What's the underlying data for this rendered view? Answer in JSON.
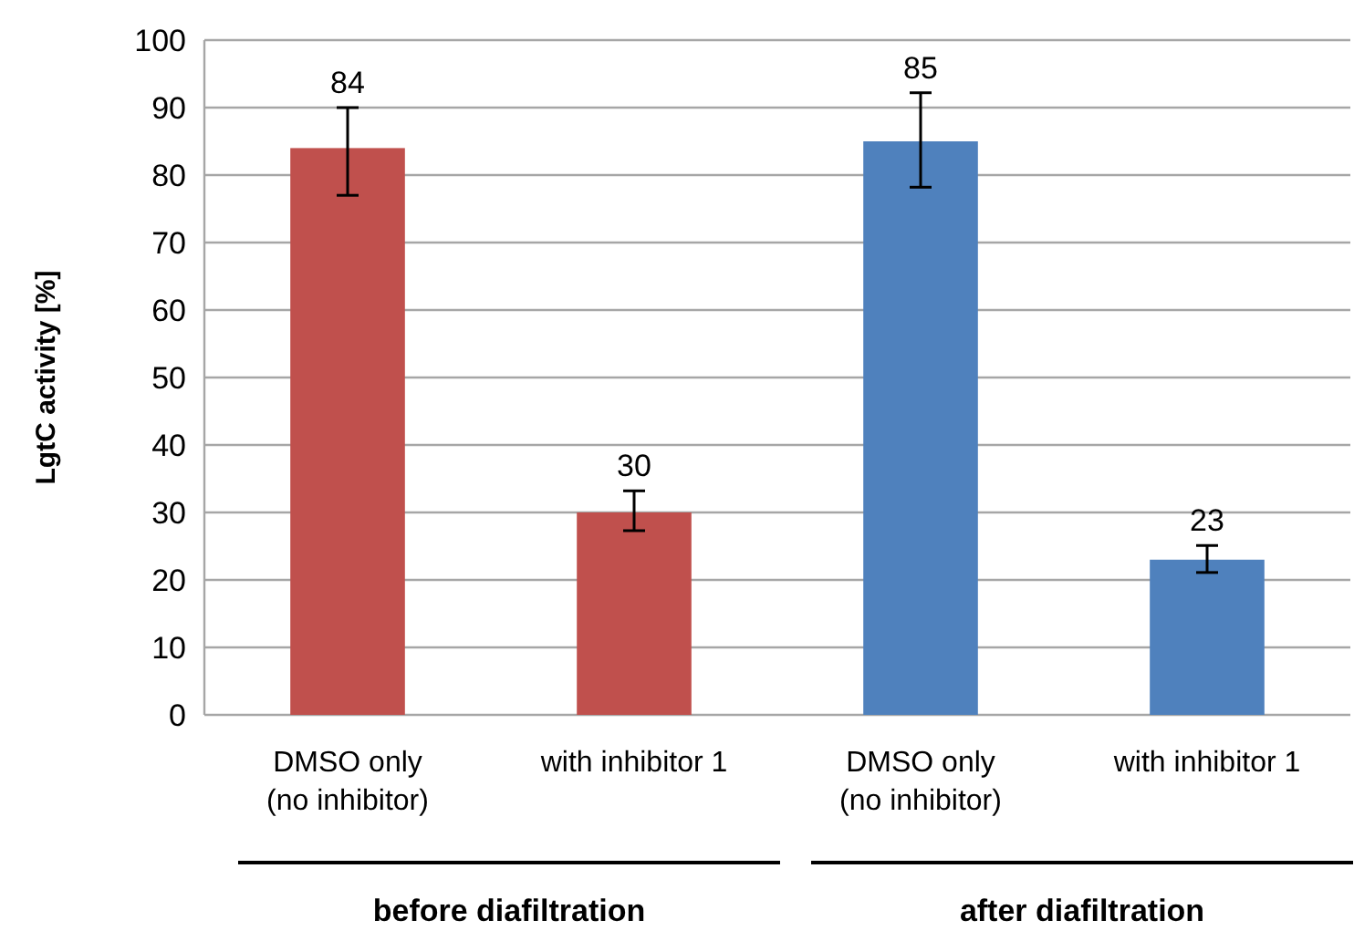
{
  "chart_data": {
    "type": "bar",
    "ylabel": "LgtC activity [%]",
    "categories": [
      "DMSO only\n(no inhibitor)",
      "with inhibitor 1",
      "DMSO only\n(no inhibitor)",
      "with inhibitor 1"
    ],
    "values": [
      84,
      30,
      85,
      23
    ],
    "colors": [
      "#c0504d",
      "#c0504d",
      "#4f81bd",
      "#4f81bd"
    ],
    "errors": [
      [
        77,
        90
      ],
      [
        27.3,
        33.2
      ],
      [
        78.2,
        92.2
      ],
      [
        21.1,
        25.1
      ]
    ],
    "data_labels": true,
    "ylim": [
      0,
      100
    ],
    "yticks": [
      0,
      10,
      20,
      30,
      40,
      50,
      60,
      70,
      80,
      90,
      100
    ],
    "grid": "y",
    "annotations": [
      "before diafiltration",
      "after diafiltration"
    ]
  }
}
